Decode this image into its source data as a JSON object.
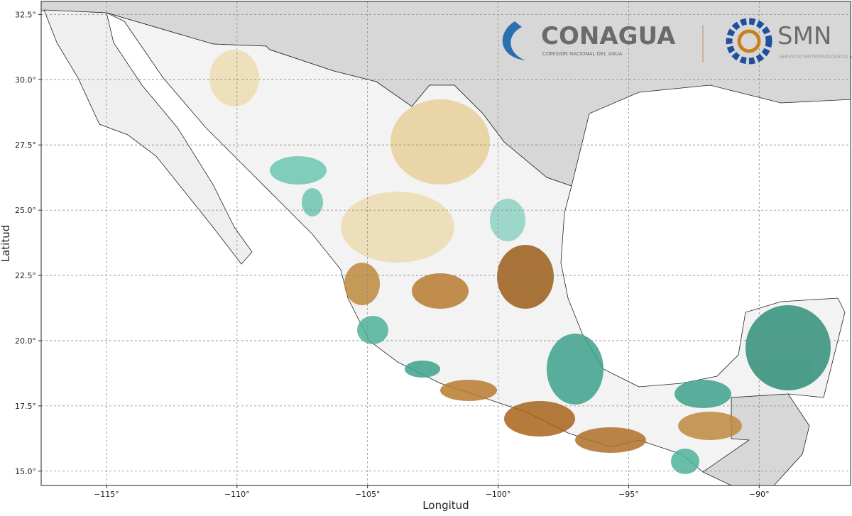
{
  "map": {
    "logos": {
      "conagua": "CONAGUA",
      "conagua_sub": "COMISIÓN NACIONAL DEL AGUA",
      "smn": "SMN",
      "smn_sub": "SERVICIO METEOROLÓGICO NACIONAL"
    },
    "x_label": "Longitud",
    "y_label": "Latitud",
    "xlim": [
      -117.5,
      -86.5
    ],
    "ylim": [
      14.45,
      33
    ],
    "xticks": [
      {
        "value": -115,
        "label": "−115°"
      },
      {
        "value": -110,
        "label": "−110°"
      },
      {
        "value": -105,
        "label": "−105°"
      },
      {
        "value": -100,
        "label": "−100°"
      },
      {
        "value": -95,
        "label": "−95°"
      },
      {
        "value": -90,
        "label": "−90°"
      }
    ],
    "yticks": [
      {
        "value": 15,
        "label": "15.0°"
      },
      {
        "value": 17.5,
        "label": "17.5°"
      },
      {
        "value": 20,
        "label": "20.0°"
      },
      {
        "value": 22.5,
        "label": "22.5°"
      },
      {
        "value": 25,
        "label": "25.0°"
      },
      {
        "value": 27.5,
        "label": "27.5°"
      },
      {
        "value": 30,
        "label": "30.0°"
      },
      {
        "value": 32.5,
        "label": "32.5°"
      }
    ],
    "grid": true
  }
}
